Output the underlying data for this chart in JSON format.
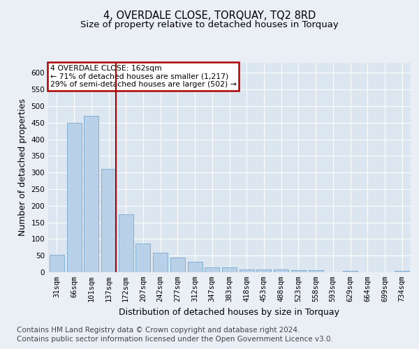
{
  "title": "4, OVERDALE CLOSE, TORQUAY, TQ2 8RD",
  "subtitle": "Size of property relative to detached houses in Torquay",
  "xlabel": "Distribution of detached houses by size in Torquay",
  "ylabel": "Number of detached properties",
  "categories": [
    "31sqm",
    "66sqm",
    "101sqm",
    "137sqm",
    "172sqm",
    "207sqm",
    "242sqm",
    "277sqm",
    "312sqm",
    "347sqm",
    "383sqm",
    "418sqm",
    "453sqm",
    "488sqm",
    "523sqm",
    "558sqm",
    "593sqm",
    "629sqm",
    "664sqm",
    "699sqm",
    "734sqm"
  ],
  "values": [
    53,
    450,
    470,
    310,
    175,
    87,
    58,
    44,
    31,
    14,
    14,
    8,
    8,
    9,
    6,
    6,
    0,
    5,
    0,
    0,
    4
  ],
  "bar_color": "#b8d0e8",
  "bar_edge_color": "#7aa8cc",
  "marker_index": 3,
  "marker_color": "#aa0000",
  "annotation_title": "4 OVERDALE CLOSE: 162sqm",
  "annotation_line1": "← 71% of detached houses are smaller (1,217)",
  "annotation_line2": "29% of semi-detached houses are larger (502) →",
  "annotation_box_color": "#ffffff",
  "annotation_box_edge": "#aa0000",
  "ylim": [
    0,
    630
  ],
  "yticks": [
    0,
    50,
    100,
    150,
    200,
    250,
    300,
    350,
    400,
    450,
    500,
    550,
    600
  ],
  "bg_color": "#eaeff5",
  "plot_bg_color": "#dce6f0",
  "footer1": "Contains HM Land Registry data © Crown copyright and database right 2024.",
  "footer2": "Contains public sector information licensed under the Open Government Licence v3.0.",
  "title_fontsize": 10.5,
  "subtitle_fontsize": 9.5,
  "axis_label_fontsize": 9,
  "tick_fontsize": 7.5,
  "footer_fontsize": 7.5
}
